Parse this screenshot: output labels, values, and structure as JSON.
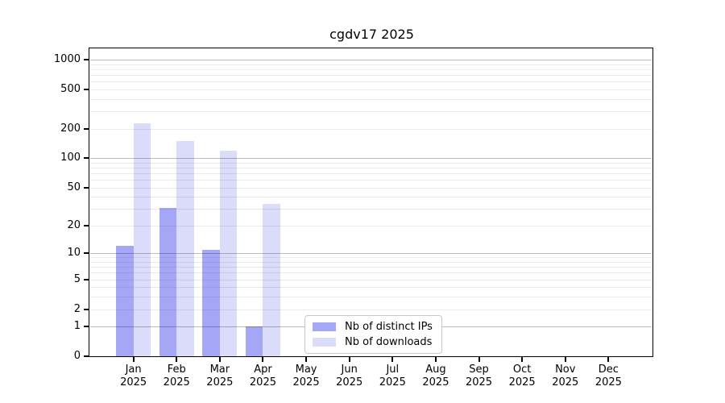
{
  "title": "cgdv17 2025",
  "chart_data": {
    "type": "bar",
    "title": "cgdv17 2025",
    "months": [
      "Jan",
      "Feb",
      "Mar",
      "Apr",
      "May",
      "Jun",
      "Jul",
      "Aug",
      "Sep",
      "Oct",
      "Nov",
      "Dec"
    ],
    "year": "2025",
    "series": [
      {
        "name": "Nb of distinct IPs",
        "color": "#a6a6f7",
        "values": [
          12,
          31,
          11,
          1,
          0,
          0,
          0,
          0,
          0,
          0,
          0,
          0
        ]
      },
      {
        "name": "Nb of downloads",
        "color": "#dbdbfa",
        "values": [
          226,
          150,
          120,
          34,
          0,
          0,
          0,
          0,
          0,
          0,
          0,
          0
        ]
      }
    ],
    "y_ticks": [
      0,
      1,
      2,
      5,
      10,
      20,
      50,
      100,
      200,
      500,
      1000
    ],
    "scale": "log1p",
    "ylim": [
      0,
      1285
    ],
    "grid": "horizontal minor + darker major at powers of 10",
    "legend_position": "inside bottom, right of center",
    "xlabel": "",
    "ylabel": ""
  }
}
